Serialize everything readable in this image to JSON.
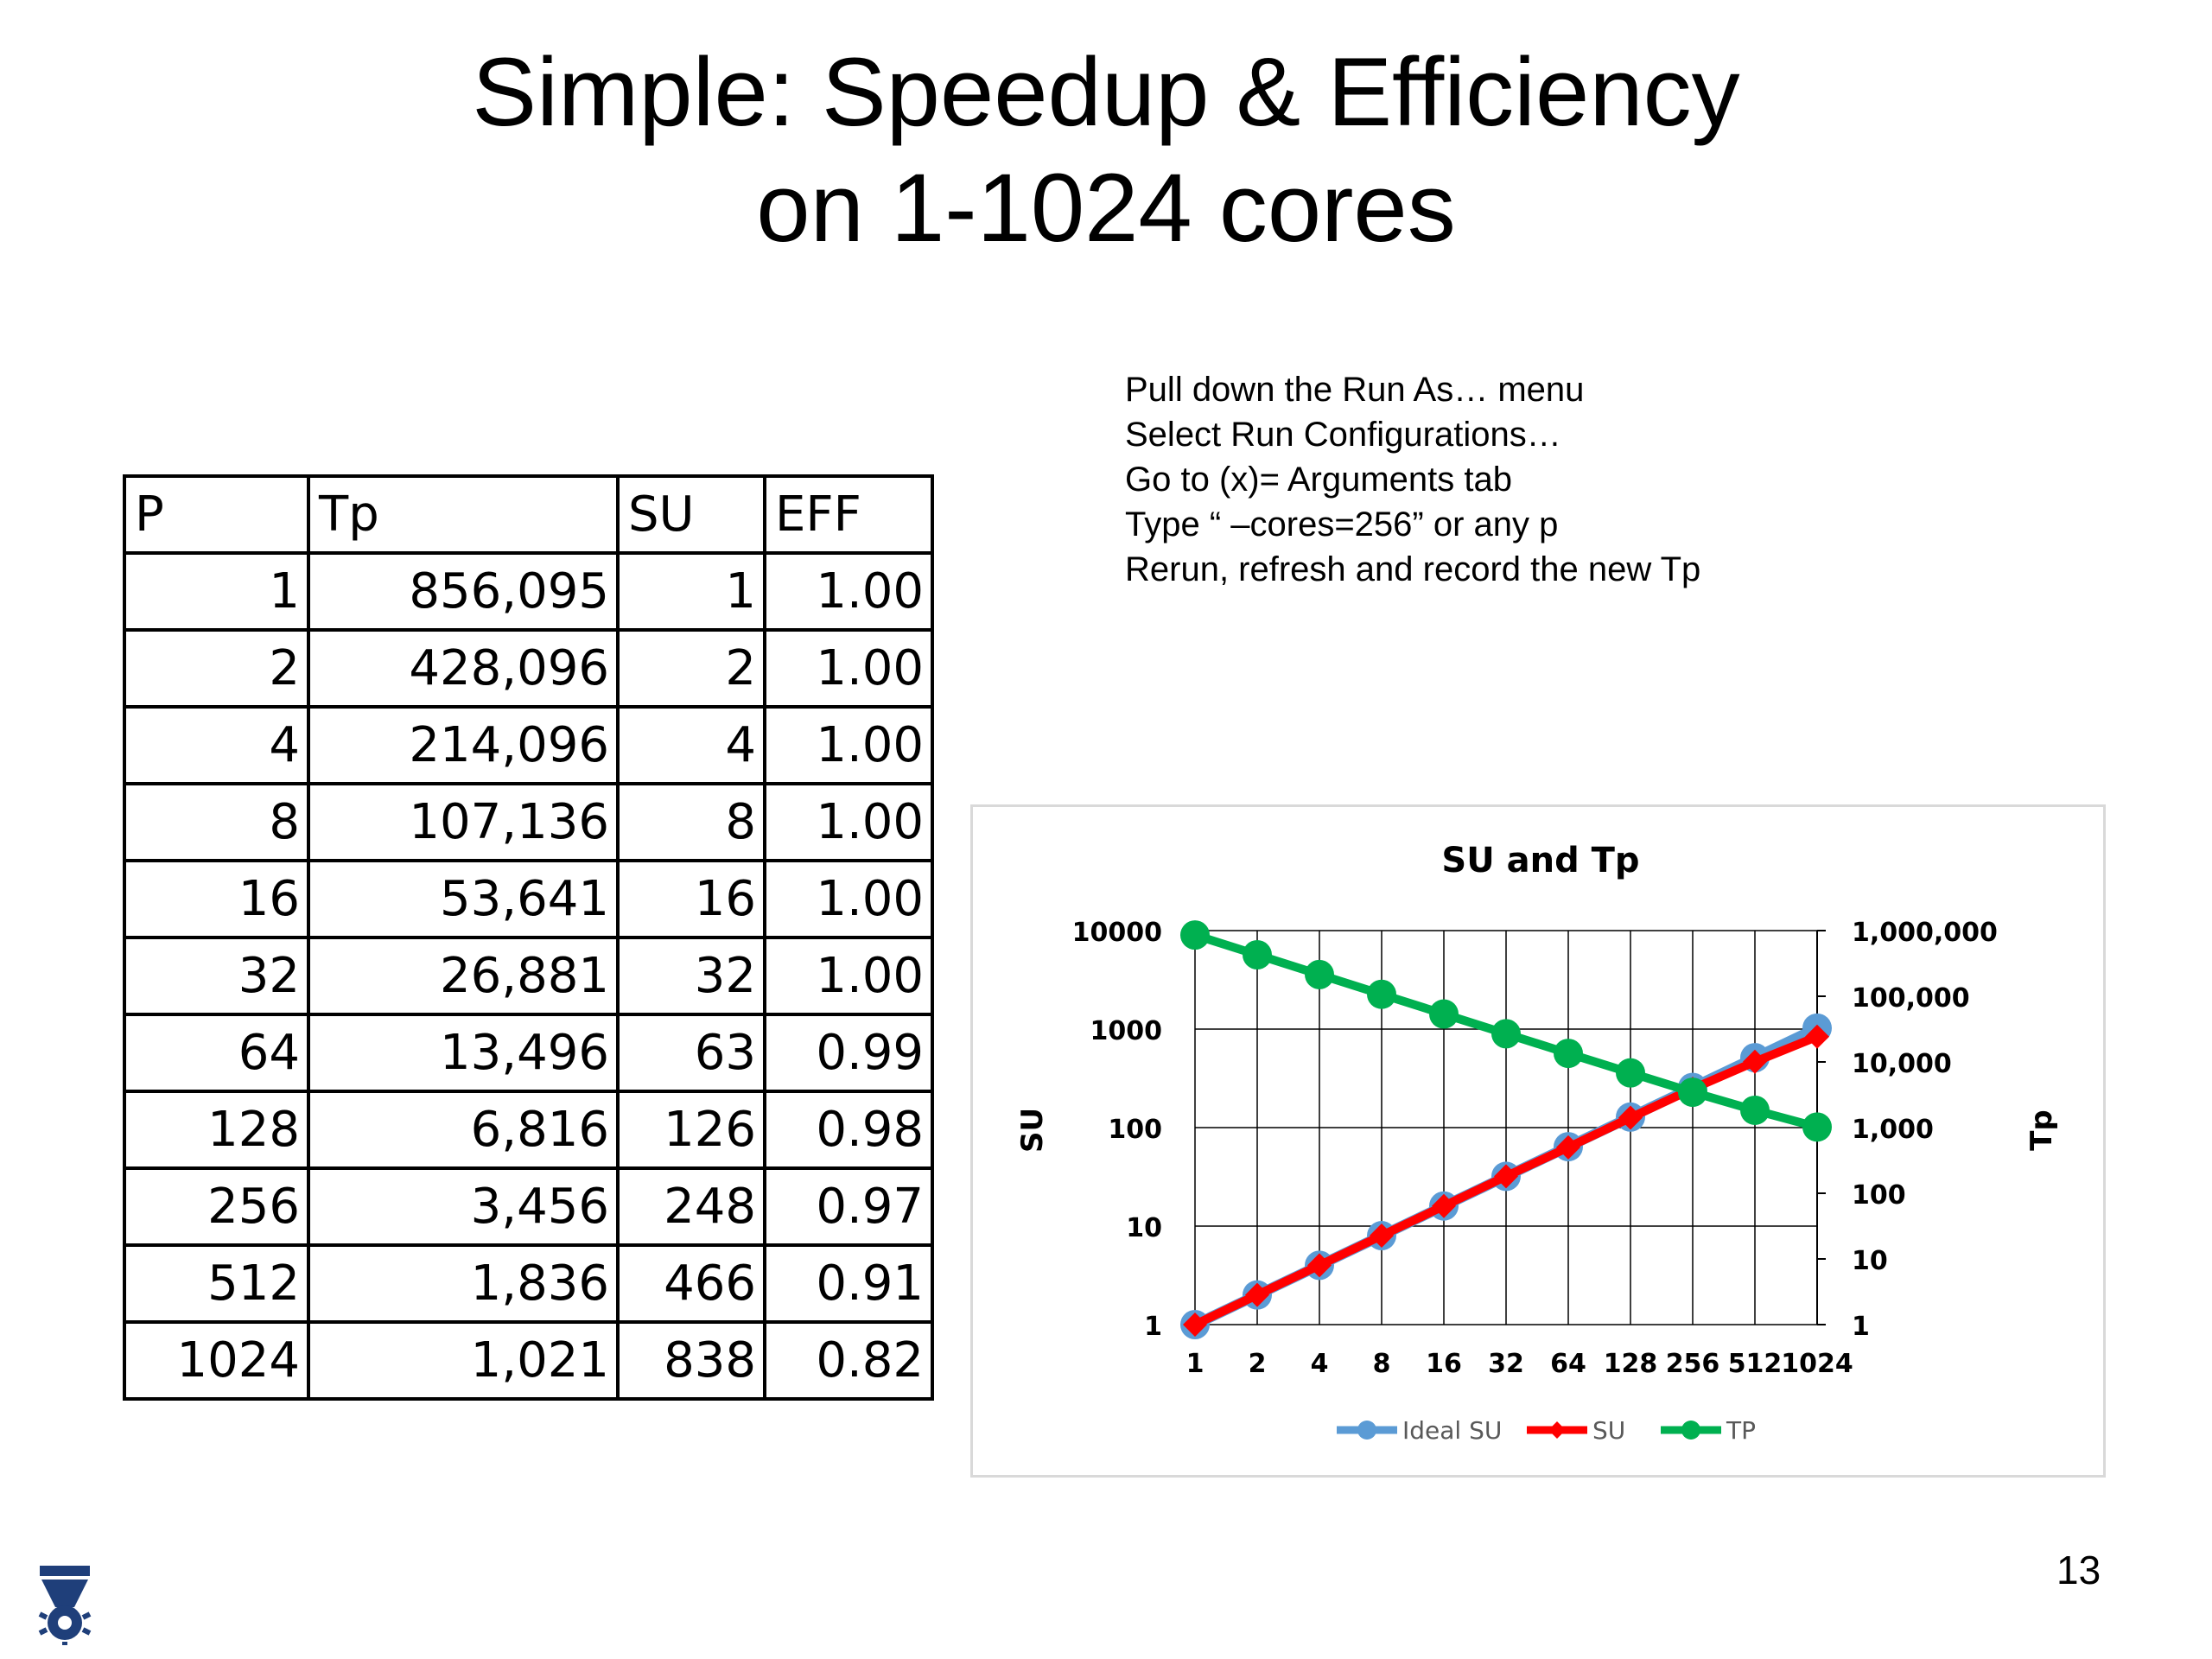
{
  "slide": {
    "title_line1": "Simple: Speedup & Efficiency",
    "title_line2": "on 1-1024 cores",
    "instructions": [
      "Pull down the Run As… menu",
      "Select Run Configurations…",
      "Go to (x)= Arguments tab",
      "Type “ –cores=256” or any p",
      "Rerun, refresh and record the new Tp"
    ],
    "page_number": "13"
  },
  "table": {
    "headers": [
      "P",
      "Tp",
      "SU",
      "EFF"
    ],
    "rows": [
      [
        "1",
        "856,095",
        "1",
        "1.00"
      ],
      [
        "2",
        "428,096",
        "2",
        "1.00"
      ],
      [
        "4",
        "214,096",
        "4",
        "1.00"
      ],
      [
        "8",
        "107,136",
        "8",
        "1.00"
      ],
      [
        "16",
        "53,641",
        "16",
        "1.00"
      ],
      [
        "32",
        "26,881",
        "32",
        "1.00"
      ],
      [
        "64",
        "13,496",
        "63",
        "0.99"
      ],
      [
        "128",
        "6,816",
        "126",
        "0.98"
      ],
      [
        "256",
        "3,456",
        "248",
        "0.97"
      ],
      [
        "512",
        "1,836",
        "466",
        "0.91"
      ],
      [
        "1024",
        "1,021",
        "838",
        "0.82"
      ]
    ]
  },
  "chart_data": {
    "type": "line",
    "title": "SU and Tp",
    "xlabel": "",
    "ylabel": "SU",
    "y2label": "Tp",
    "categories": [
      "1",
      "2",
      "4",
      "8",
      "16",
      "32",
      "64",
      "128",
      "256",
      "512",
      "1024"
    ],
    "y_scale": "log",
    "y_ticks": [
      "1",
      "10",
      "100",
      "1000",
      "10000"
    ],
    "ylim": [
      1,
      10000
    ],
    "y2_scale": "log",
    "y2_ticks": [
      "1",
      "10",
      "100",
      "1,000",
      "10,000",
      "100,000",
      "1,000,000"
    ],
    "y2lim": [
      1,
      1000000
    ],
    "grid": true,
    "legend": "bottom",
    "series": [
      {
        "name": "Ideal SU",
        "axis": "left",
        "color": "#5b9bd5",
        "values": [
          1,
          2,
          4,
          8,
          16,
          32,
          64,
          128,
          256,
          512,
          1024
        ]
      },
      {
        "name": "SU",
        "axis": "left",
        "color": "#ff0000",
        "values": [
          1,
          2,
          4,
          8,
          16,
          32,
          63,
          126,
          248,
          466,
          838
        ]
      },
      {
        "name": "TP",
        "axis": "right",
        "color": "#00b050",
        "values": [
          856095,
          428096,
          214096,
          107136,
          53641,
          26881,
          13496,
          6816,
          3456,
          1836,
          1021
        ]
      }
    ]
  }
}
